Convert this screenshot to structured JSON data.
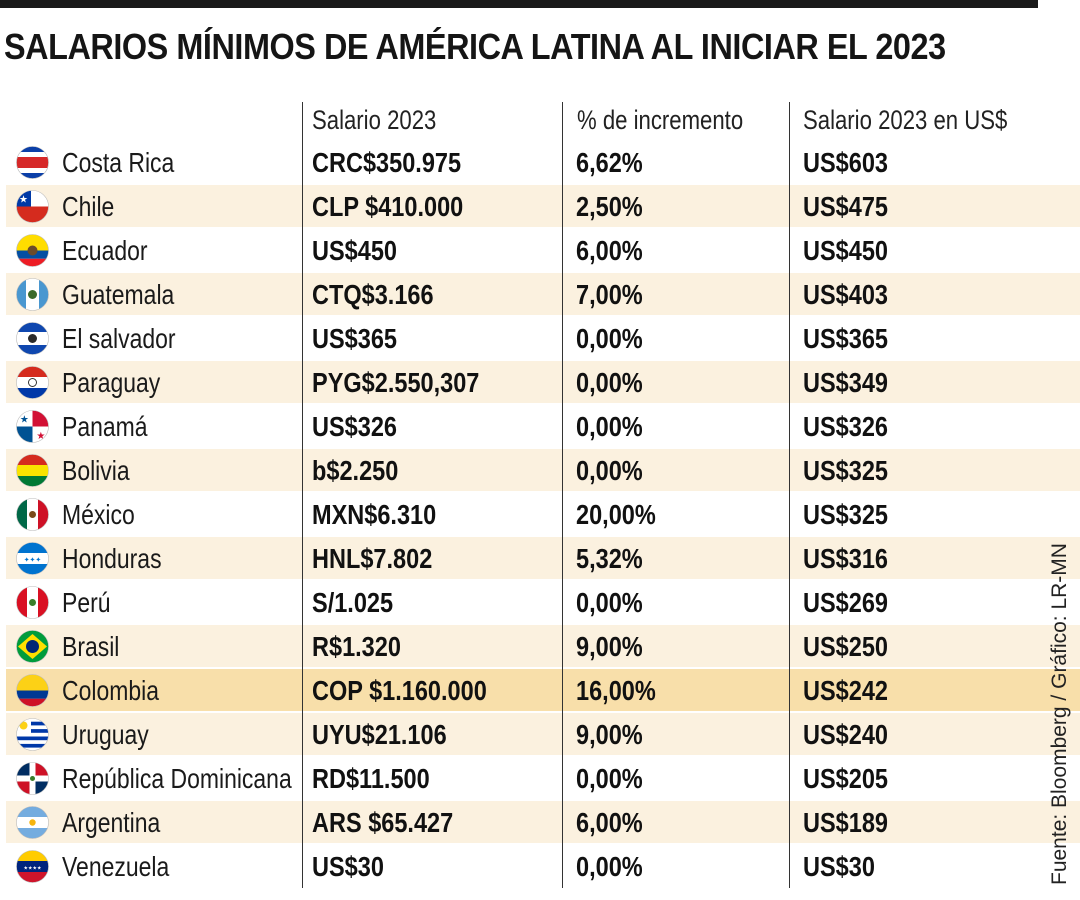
{
  "title": "SALARIOS MÍNIMOS DE AMÉRICA LATINA AL INICIAR EL 2023",
  "source": "Fuente: Bloomberg / Gráfico: LR-MN",
  "headers": [
    "Salario 2023",
    "% de incremento",
    "Salario 2023 en US$"
  ],
  "highlight_color": "#f8dfaa",
  "alt_row_color": "#fbf1df",
  "chart_data": {
    "type": "table",
    "title": "SALARIOS MÍNIMOS DE AMÉRICA LATINA AL INICIAR EL 2023",
    "columns": [
      "",
      "Salario 2023",
      "% de incremento",
      "Salario 2023 en US$"
    ],
    "rows": [
      {
        "country": "Costa Rica",
        "flag": "costa-rica-flag",
        "salary": "CRC$350.975",
        "increase": "6,62%",
        "usd": "US$603",
        "usd_value": 603
      },
      {
        "country": "Chile",
        "flag": "chile-flag",
        "salary": "CLP $410.000",
        "increase": "2,50%",
        "usd": "US$475",
        "usd_value": 475
      },
      {
        "country": "Ecuador",
        "flag": "ecuador-flag",
        "salary": "US$450",
        "increase": "6,00%",
        "usd": "US$450",
        "usd_value": 450
      },
      {
        "country": "Guatemala",
        "flag": "guatemala-flag",
        "salary": "CTQ$3.166",
        "increase": "7,00%",
        "usd": "US$403",
        "usd_value": 403
      },
      {
        "country": "El salvador",
        "flag": "el-salvador-flag",
        "salary": "US$365",
        "increase": "0,00%",
        "usd": "US$365",
        "usd_value": 365
      },
      {
        "country": "Paraguay",
        "flag": "paraguay-flag",
        "salary": "PYG$2.550,307",
        "increase": "0,00%",
        "usd": "US$349",
        "usd_value": 349
      },
      {
        "country": "Panamá",
        "flag": "panama-flag",
        "salary": "US$326",
        "increase": "0,00%",
        "usd": "US$326",
        "usd_value": 326
      },
      {
        "country": "Bolivia",
        "flag": "bolivia-flag",
        "salary": "b$2.250",
        "increase": "0,00%",
        "usd": "US$325",
        "usd_value": 325
      },
      {
        "country": "México",
        "flag": "mexico-flag",
        "salary": "MXN$6.310",
        "increase": "20,00%",
        "usd": "US$325",
        "usd_value": 325
      },
      {
        "country": "Honduras",
        "flag": "honduras-flag",
        "salary": "HNL$7.802",
        "increase": "5,32%",
        "usd": "US$316",
        "usd_value": 316
      },
      {
        "country": "Perú",
        "flag": "peru-flag",
        "salary": "S/1.025",
        "increase": "0,00%",
        "usd": "US$269",
        "usd_value": 269
      },
      {
        "country": "Brasil",
        "flag": "brasil-flag",
        "salary": "R$1.320",
        "increase": "9,00%",
        "usd": "US$250",
        "usd_value": 250
      },
      {
        "country": "Colombia",
        "flag": "colombia-flag",
        "salary": "COP $1.160.000",
        "increase": "16,00%",
        "usd": "US$242",
        "usd_value": 242,
        "highlight": true
      },
      {
        "country": "Uruguay",
        "flag": "uruguay-flag",
        "salary": "UYU$21.106",
        "increase": "9,00%",
        "usd": "US$240",
        "usd_value": 240
      },
      {
        "country": "República Dominicana",
        "flag": "republica-dominicana-flag",
        "salary": "RD$11.500",
        "increase": "0,00%",
        "usd": "US$205",
        "usd_value": 205
      },
      {
        "country": "Argentina",
        "flag": "argentina-flag",
        "salary": "ARS $65.427",
        "increase": "6,00%",
        "usd": "US$189",
        "usd_value": 189
      },
      {
        "country": "Venezuela",
        "flag": "venezuela-flag",
        "salary": "US$30",
        "increase": "0,00%",
        "usd": "US$30",
        "usd_value": 30
      }
    ]
  }
}
